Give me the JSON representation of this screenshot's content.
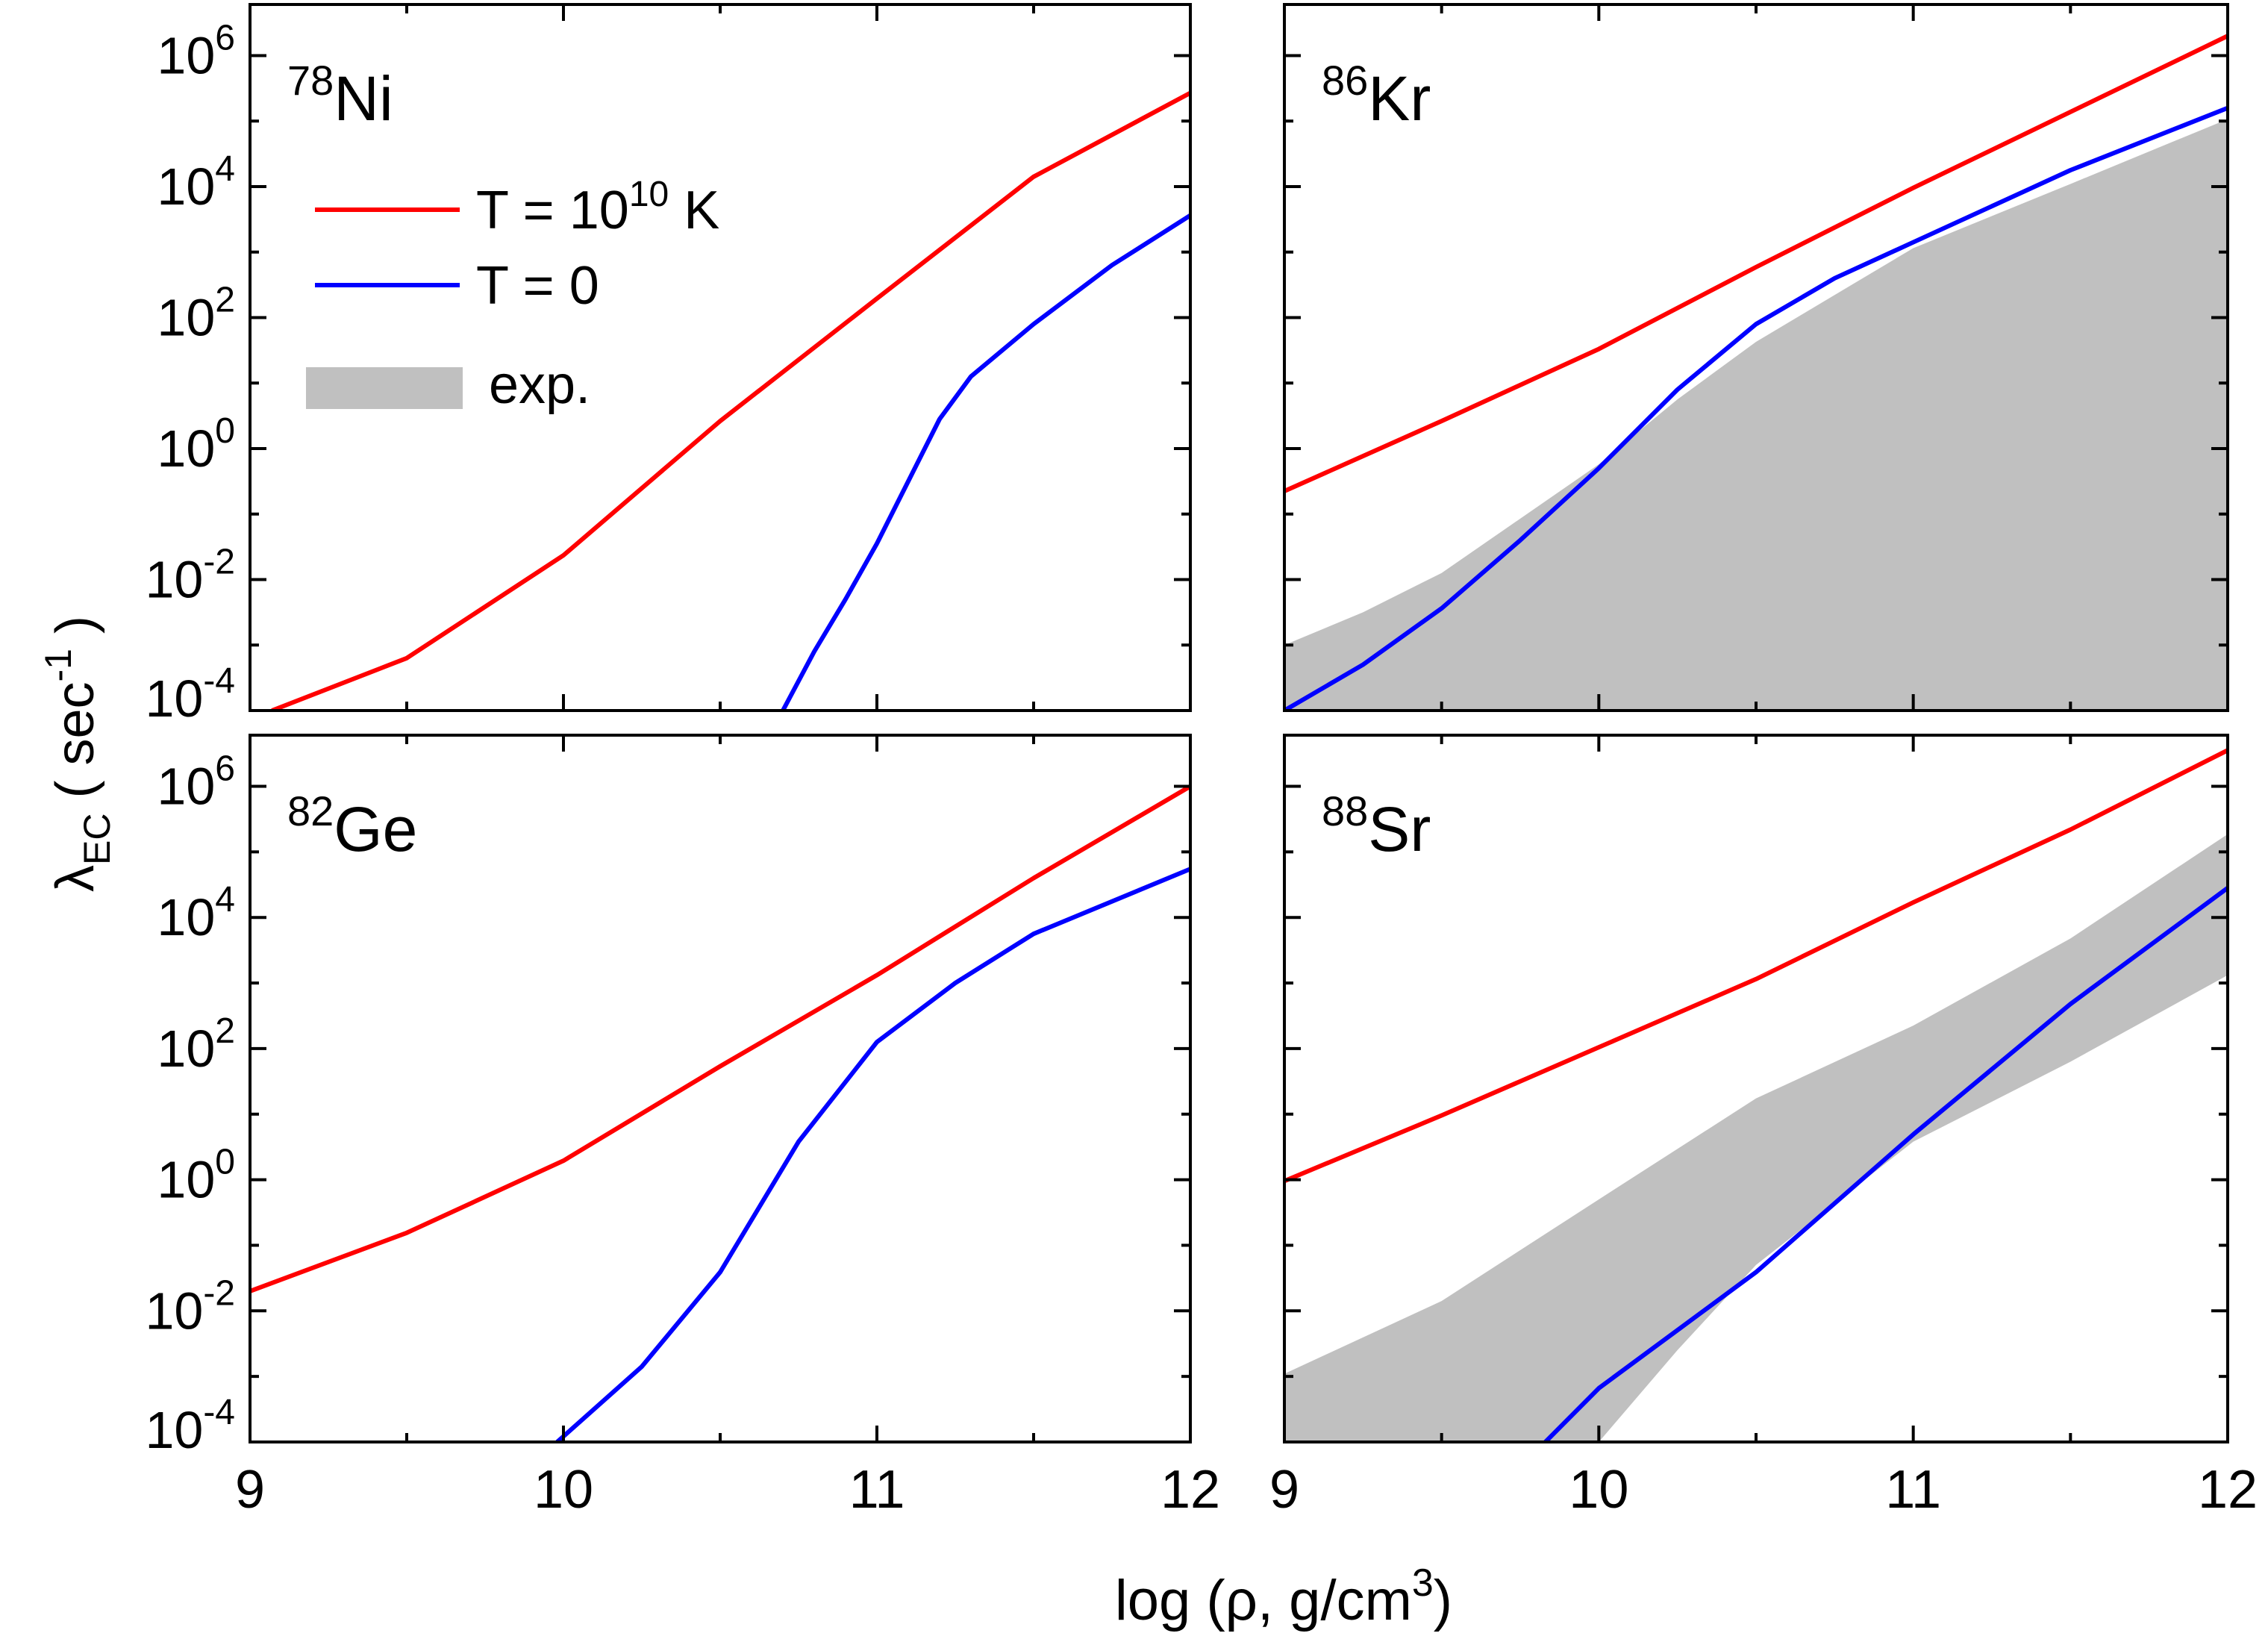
{
  "chart_data": {
    "type": "line",
    "layout": "2x2 panels, shared axes",
    "xlabel": "log (ρ, g/cm3)",
    "xlabel_parts": {
      "main": "log (ρ, g/cm",
      "sup": "3",
      "tail": ")"
    },
    "ylabel": "λEC ( sec-1 )",
    "ylabel_parts": {
      "main": "λ",
      "sub": "EC",
      "mid": " ( sec",
      "sup": "-1",
      "tail": " )"
    },
    "yscale": "log",
    "xlim": [
      9,
      12
    ],
    "ylim_log10": [
      -4,
      6.78
    ],
    "x_ticks": [
      9,
      10,
      11,
      12
    ],
    "x_tick_labels": [
      "9",
      "10",
      "11",
      "12"
    ],
    "y_ticks_log10": [
      -4,
      -2,
      0,
      2,
      4,
      6
    ],
    "y_tick_labels": [
      {
        "base": "10",
        "exp": "-4"
      },
      {
        "base": "10",
        "exp": "-2"
      },
      {
        "base": "10",
        "exp": "0"
      },
      {
        "base": "10",
        "exp": "2"
      },
      {
        "base": "10",
        "exp": "4"
      },
      {
        "base": "10",
        "exp": "6"
      }
    ],
    "legend": {
      "placement": "top-left of first panel",
      "entries": [
        {
          "key": "hot",
          "label": "T = 10",
          "sup": "10",
          "tail": " K",
          "color": "#ff0000"
        },
        {
          "key": "cold",
          "label": "T = 0",
          "color": "#0000ff"
        },
        {
          "key": "exp",
          "label": "exp.",
          "color": "#c0c0c0"
        }
      ]
    },
    "colors": {
      "hot": "#ff0000",
      "cold": "#0000ff",
      "exp": "#c0c0c0"
    },
    "panels": [
      {
        "nucleus": {
          "mass": "78",
          "symbol": "Ni"
        },
        "series": [
          {
            "name": "T = 10^10 K",
            "key": "hot",
            "log10_values": [
              [
                9.07,
                -4
              ],
              [
                9.5,
                -3.2
              ],
              [
                10,
                -1.63
              ],
              [
                10.5,
                0.42
              ],
              [
                11,
                2.29
              ],
              [
                11.5,
                4.15
              ],
              [
                12,
                5.43
              ]
            ]
          },
          {
            "name": "T = 0",
            "key": "cold",
            "log10_values": [
              [
                10.7,
                -4
              ],
              [
                10.8,
                -3.1
              ],
              [
                10.9,
                -2.3
              ],
              [
                11,
                -1.45
              ],
              [
                11.1,
                -0.5
              ],
              [
                11.2,
                0.45
              ],
              [
                11.3,
                1.1
              ],
              [
                11.5,
                1.9
              ],
              [
                11.75,
                2.8
              ],
              [
                12,
                3.56
              ]
            ]
          }
        ],
        "exp_band": null
      },
      {
        "nucleus": {
          "mass": "86",
          "symbol": "Kr"
        },
        "series": [
          {
            "name": "T = 10^10 K",
            "key": "hot",
            "log10_values": [
              [
                9,
                -0.65
              ],
              [
                9.5,
                0.42
              ],
              [
                10,
                1.52
              ],
              [
                10.5,
                2.77
              ],
              [
                11,
                3.98
              ],
              [
                11.5,
                5.14
              ],
              [
                12,
                6.3
              ]
            ]
          },
          {
            "name": "T = 0",
            "key": "cold",
            "log10_values": [
              [
                9,
                -4
              ],
              [
                9.25,
                -3.3
              ],
              [
                9.5,
                -2.44
              ],
              [
                9.75,
                -1.4
              ],
              [
                10,
                -0.3
              ],
              [
                10.25,
                0.9
              ],
              [
                10.5,
                1.9
              ],
              [
                10.75,
                2.6
              ],
              [
                11,
                3.15
              ],
              [
                11.5,
                4.25
              ],
              [
                12,
                5.2
              ]
            ]
          }
        ],
        "exp_band": {
          "upper": [
            [
              9,
              -3.0
            ],
            [
              9.25,
              -2.5
            ],
            [
              9.5,
              -1.9
            ],
            [
              10,
              -0.24
            ],
            [
              10.25,
              0.75
            ],
            [
              10.5,
              1.63
            ],
            [
              11,
              3.06
            ],
            [
              11.5,
              4.04
            ],
            [
              12,
              5.03
            ]
          ],
          "lower": [
            [
              9,
              -4
            ],
            [
              12,
              -4
            ]
          ]
        }
      },
      {
        "nucleus": {
          "mass": "82",
          "symbol": "Ge"
        },
        "series": [
          {
            "name": "T = 10^10 K",
            "key": "hot",
            "log10_values": [
              [
                9,
                -1.7
              ],
              [
                9.5,
                -0.81
              ],
              [
                10,
                0.29
              ],
              [
                10.5,
                1.73
              ],
              [
                11,
                3.12
              ],
              [
                11.5,
                4.6
              ],
              [
                12,
                6.0
              ]
            ]
          },
          {
            "name": "T = 0",
            "key": "cold",
            "log10_values": [
              [
                9.98,
                -4
              ],
              [
                10.25,
                -2.85
              ],
              [
                10.5,
                -1.41
              ],
              [
                10.75,
                0.58
              ],
              [
                11,
                2.1
              ],
              [
                11.25,
                3.0
              ],
              [
                11.5,
                3.75
              ],
              [
                12,
                4.74
              ]
            ]
          }
        ],
        "exp_band": null
      },
      {
        "nucleus": {
          "mass": "88",
          "symbol": "Sr"
        },
        "series": [
          {
            "name": "T = 10^10 K",
            "key": "hot",
            "log10_values": [
              [
                9,
                -0.02
              ],
              [
                9.5,
                0.98
              ],
              [
                10,
                2.02
              ],
              [
                10.5,
                3.06
              ],
              [
                11,
                4.23
              ],
              [
                11.5,
                5.34
              ],
              [
                12,
                6.55
              ]
            ]
          },
          {
            "name": "T = 0",
            "key": "cold",
            "log10_values": [
              [
                9.83,
                -4
              ],
              [
                10,
                -3.18
              ],
              [
                10.5,
                -1.41
              ],
              [
                11,
                0.69
              ],
              [
                11.5,
                2.68
              ],
              [
                12,
                4.45
              ]
            ]
          }
        ],
        "exp_band": {
          "upper": [
            [
              9,
              -2.96
            ],
            [
              9.5,
              -1.85
            ],
            [
              10,
              -0.3
            ],
            [
              10.5,
              1.24
            ],
            [
              11,
              2.35
            ],
            [
              11.5,
              3.68
            ],
            [
              12,
              5.27
            ]
          ],
          "lower": [
            [
              9,
              -4
            ],
            [
              10,
              -4
            ],
            [
              10.25,
              -2.6
            ],
            [
              10.5,
              -1.3
            ],
            [
              11,
              0.58
            ],
            [
              11.5,
              1.8
            ],
            [
              12,
              3.12
            ]
          ]
        }
      }
    ]
  }
}
